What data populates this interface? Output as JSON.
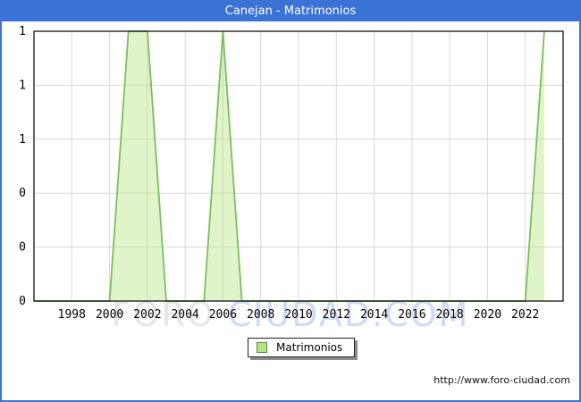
{
  "window": {
    "title": "Canejan - Matrimonios"
  },
  "colors": {
    "accent_blue": "#3a72d6",
    "grid": "#d9d9d9",
    "area_fill_rgba": "rgba(178,229,127,0.42)",
    "line_green": "#7cbf5e",
    "legend_square_fill": "#b2e77f",
    "watermark_gray": "#e6e6e6",
    "watermark_blue": "#cfdaf4",
    "frame_black": "#000000"
  },
  "chart_data": {
    "type": "area",
    "title": "Canejan - Matrimonios",
    "series_name": "Matrimonios",
    "x": [
      1996,
      1997,
      1998,
      1999,
      2000,
      2001,
      2002,
      2003,
      2004,
      2005,
      2006,
      2007,
      2008,
      2009,
      2010,
      2011,
      2012,
      2013,
      2014,
      2015,
      2016,
      2017,
      2018,
      2019,
      2020,
      2021,
      2022,
      2023
    ],
    "values": [
      0,
      0,
      0,
      0,
      0,
      1,
      1,
      0,
      0,
      0,
      1,
      0,
      0,
      0,
      0,
      0,
      0,
      0,
      0,
      0,
      0,
      0,
      0,
      0,
      0,
      0,
      0,
      1
    ],
    "x_domain": [
      1996,
      2024
    ],
    "y_domain": [
      0,
      1
    ],
    "x_tick_years": [
      1998,
      2000,
      2002,
      2004,
      2006,
      2008,
      2010,
      2012,
      2014,
      2016,
      2018,
      2020,
      2022
    ],
    "y_ticks": [
      {
        "value": 1.0,
        "label": "1"
      },
      {
        "value": 0.8,
        "label": "1"
      },
      {
        "value": 0.6,
        "label": "1"
      },
      {
        "value": 0.4,
        "label": "0"
      },
      {
        "value": 0.2,
        "label": "0"
      },
      {
        "value": 0.0,
        "label": "0"
      }
    ],
    "grid": true,
    "legend_position": "bottom-center",
    "ylabel": "",
    "xlabel": ""
  },
  "legend": {
    "label": "Matrimonios"
  },
  "watermark": {
    "part1": "FORO",
    "part2": "CIUDAD.COM"
  },
  "footer": {
    "url": "http://www.foro-ciudad.com"
  }
}
